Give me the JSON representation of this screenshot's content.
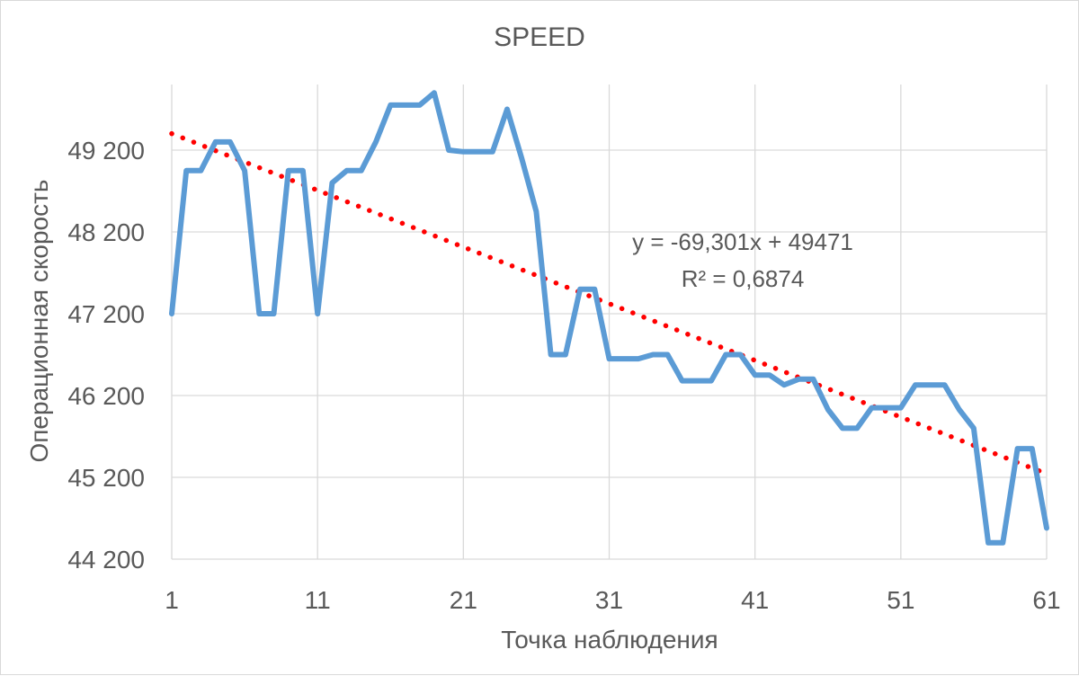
{
  "chart_data": {
    "type": "line",
    "title": "SPEED",
    "xlabel": "Точка наблюдения",
    "ylabel": "Операционная скорость",
    "x_ticks": [
      "1",
      "11",
      "21",
      "31",
      "41",
      "51",
      "61"
    ],
    "y_ticks": [
      "44 200",
      "45 200",
      "46 200",
      "47 200",
      "48 200",
      "49 200"
    ],
    "xlim": [
      1,
      61
    ],
    "ylim": [
      44200,
      50200
    ],
    "grid": "vertical and horizontal",
    "legend": "none",
    "colors": {
      "series": "#5b9bd5",
      "trendline": "#ff0000",
      "grid": "#d9d9d9"
    },
    "series": [
      {
        "x": [
          1,
          2,
          3,
          4,
          5,
          6,
          7,
          8,
          9,
          10,
          11,
          12,
          13,
          14,
          15,
          16,
          17,
          18,
          19,
          20,
          21,
          22,
          23,
          24,
          25,
          26,
          27,
          28,
          29,
          30,
          31,
          32,
          33,
          34,
          35,
          36,
          37,
          38,
          39,
          40,
          41,
          42,
          43,
          44,
          45,
          46,
          47,
          48,
          49,
          50,
          51,
          52,
          53,
          54,
          55,
          56,
          57,
          58,
          59,
          60,
          61
        ],
        "values": [
          47200,
          48950,
          48950,
          49300,
          49300,
          48950,
          47200,
          47200,
          48950,
          48950,
          47200,
          48800,
          48950,
          48950,
          49300,
          49750,
          49750,
          49750,
          49900,
          49200,
          49180,
          49180,
          49180,
          49700,
          49100,
          48450,
          46700,
          46700,
          47500,
          47500,
          46650,
          46650,
          46650,
          46700,
          46700,
          46380,
          46380,
          46380,
          46700,
          46700,
          46450,
          46450,
          46330,
          46400,
          46400,
          46030,
          45800,
          45800,
          46050,
          46050,
          46050,
          46330,
          46330,
          46330,
          46030,
          45800,
          44400,
          44400,
          45550,
          45550,
          44580
        ]
      }
    ],
    "trendline": {
      "type": "linear",
      "equation": "y = -69,301x + 49471",
      "r_squared": "R² = 0,6874",
      "slope": -69.301,
      "intercept": 49471
    }
  }
}
